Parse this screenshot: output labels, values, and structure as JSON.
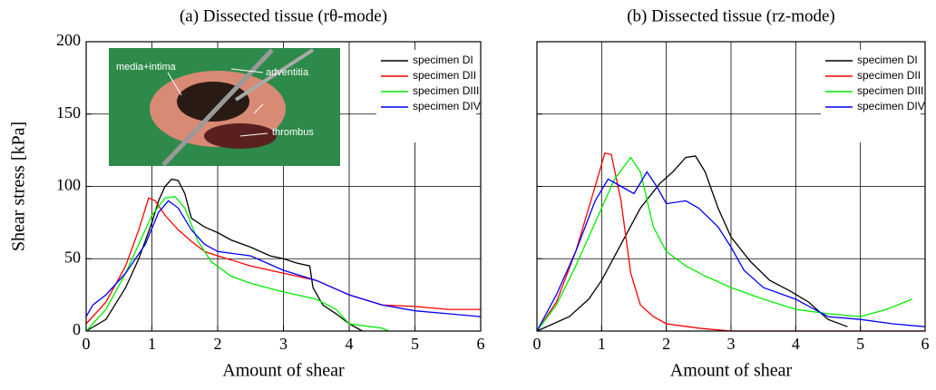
{
  "chart_data": [
    {
      "type": "line",
      "title": "(a) Dissected tissue (rθ-mode)",
      "x_label": "Amount of shear",
      "y_label": "Shear stress [kPa]",
      "xlim": [
        0,
        6
      ],
      "xticks": [
        0,
        1,
        2,
        3,
        4,
        5,
        6
      ],
      "ylim": [
        0,
        200
      ],
      "yticks": [
        0,
        50,
        100,
        150,
        200
      ],
      "grid": true,
      "legend": "upper right",
      "annotations": [
        "media+intima",
        "adventitia",
        "thrombus"
      ],
      "series": [
        {
          "name": "specimen DI",
          "color": "#000000",
          "x": [
            0,
            0.3,
            0.6,
            0.8,
            1.0,
            1.1,
            1.2,
            1.3,
            1.4,
            1.5,
            1.6,
            1.8,
            2.0,
            2.2,
            2.5,
            2.8,
            3.0,
            3.2,
            3.4,
            3.45,
            3.6,
            3.8,
            4.0,
            4.2
          ],
          "values": [
            0,
            8,
            30,
            50,
            75,
            90,
            100,
            105,
            104,
            95,
            78,
            72,
            68,
            63,
            58,
            52,
            50,
            47,
            45,
            30,
            18,
            12,
            5,
            0
          ]
        },
        {
          "name": "specimen DII",
          "color": "#ff0000",
          "x": [
            0,
            0.3,
            0.6,
            0.8,
            0.95,
            1.05,
            1.2,
            1.4,
            1.6,
            1.8,
            2.0,
            2.5,
            3.0,
            3.5,
            4.0,
            4.5,
            5.0,
            5.5,
            6.0
          ],
          "values": [
            5,
            20,
            45,
            70,
            92,
            90,
            80,
            70,
            62,
            55,
            52,
            45,
            40,
            35,
            25,
            18,
            17,
            15,
            15
          ]
        },
        {
          "name": "specimen DIII",
          "color": "#00ee00",
          "x": [
            0,
            0.3,
            0.6,
            0.8,
            1.0,
            1.2,
            1.35,
            1.5,
            1.7,
            1.9,
            2.2,
            2.5,
            3.0,
            3.5,
            3.8,
            4.0,
            4.5,
            4.6
          ],
          "values": [
            0,
            15,
            40,
            60,
            80,
            92,
            93,
            85,
            62,
            48,
            38,
            33,
            27,
            22,
            15,
            5,
            2,
            0
          ]
        },
        {
          "name": "specimen DIV",
          "color": "#0000ff",
          "x": [
            0,
            0.1,
            0.3,
            0.6,
            0.9,
            1.1,
            1.25,
            1.4,
            1.6,
            1.8,
            2.0,
            2.5,
            3.0,
            3.5,
            4.0,
            4.5,
            5.0,
            5.5,
            6.0
          ],
          "values": [
            10,
            18,
            25,
            40,
            60,
            82,
            90,
            85,
            70,
            60,
            55,
            52,
            42,
            35,
            25,
            18,
            14,
            12,
            10
          ]
        }
      ]
    },
    {
      "type": "line",
      "title": "(b) Dissected tissue (rz-mode)",
      "x_label": "Amount of shear",
      "xlim": [
        0,
        6
      ],
      "xticks": [
        0,
        1,
        2,
        3,
        4,
        5,
        6
      ],
      "ylim": [
        0,
        200
      ],
      "yticks": [
        0,
        50,
        100,
        150,
        200
      ],
      "grid": true,
      "legend": "upper right",
      "series": [
        {
          "name": "specimen DI",
          "color": "#000000",
          "x": [
            0,
            0.5,
            0.8,
            1.0,
            1.3,
            1.6,
            1.9,
            2.1,
            2.3,
            2.45,
            2.6,
            2.8,
            3.0,
            3.3,
            3.6,
            3.9,
            4.2,
            4.5,
            4.8
          ],
          "values": [
            0,
            10,
            22,
            35,
            60,
            85,
            102,
            110,
            120,
            121,
            110,
            85,
            65,
            48,
            35,
            28,
            20,
            8,
            3
          ]
        },
        {
          "name": "specimen DII",
          "color": "#ff0000",
          "x": [
            0,
            0.3,
            0.6,
            0.9,
            1.05,
            1.15,
            1.3,
            1.45,
            1.6,
            1.8,
            2.0,
            2.5,
            3.0,
            6.0
          ],
          "values": [
            0,
            20,
            55,
            100,
            123,
            122,
            90,
            40,
            18,
            10,
            5,
            2,
            0,
            0
          ]
        },
        {
          "name": "specimen DIII",
          "color": "#00ee00",
          "x": [
            0,
            0.3,
            0.6,
            0.9,
            1.2,
            1.45,
            1.6,
            1.8,
            2.0,
            2.3,
            2.6,
            3.0,
            3.5,
            4.0,
            4.5,
            5.0,
            5.4,
            5.8
          ],
          "values": [
            0,
            18,
            45,
            75,
            105,
            120,
            110,
            72,
            55,
            45,
            38,
            30,
            22,
            15,
            12,
            10,
            15,
            22
          ]
        },
        {
          "name": "specimen DIV",
          "color": "#0000ff",
          "x": [
            0,
            0.3,
            0.6,
            0.9,
            1.1,
            1.3,
            1.5,
            1.7,
            1.85,
            2.0,
            2.3,
            2.5,
            2.8,
            3.0,
            3.2,
            3.5,
            4.0,
            4.5,
            5.0,
            5.5,
            6.0
          ],
          "values": [
            0,
            25,
            55,
            90,
            105,
            100,
            95,
            110,
            100,
            88,
            90,
            85,
            72,
            58,
            42,
            30,
            22,
            10,
            8,
            5,
            3
          ]
        }
      ]
    }
  ]
}
